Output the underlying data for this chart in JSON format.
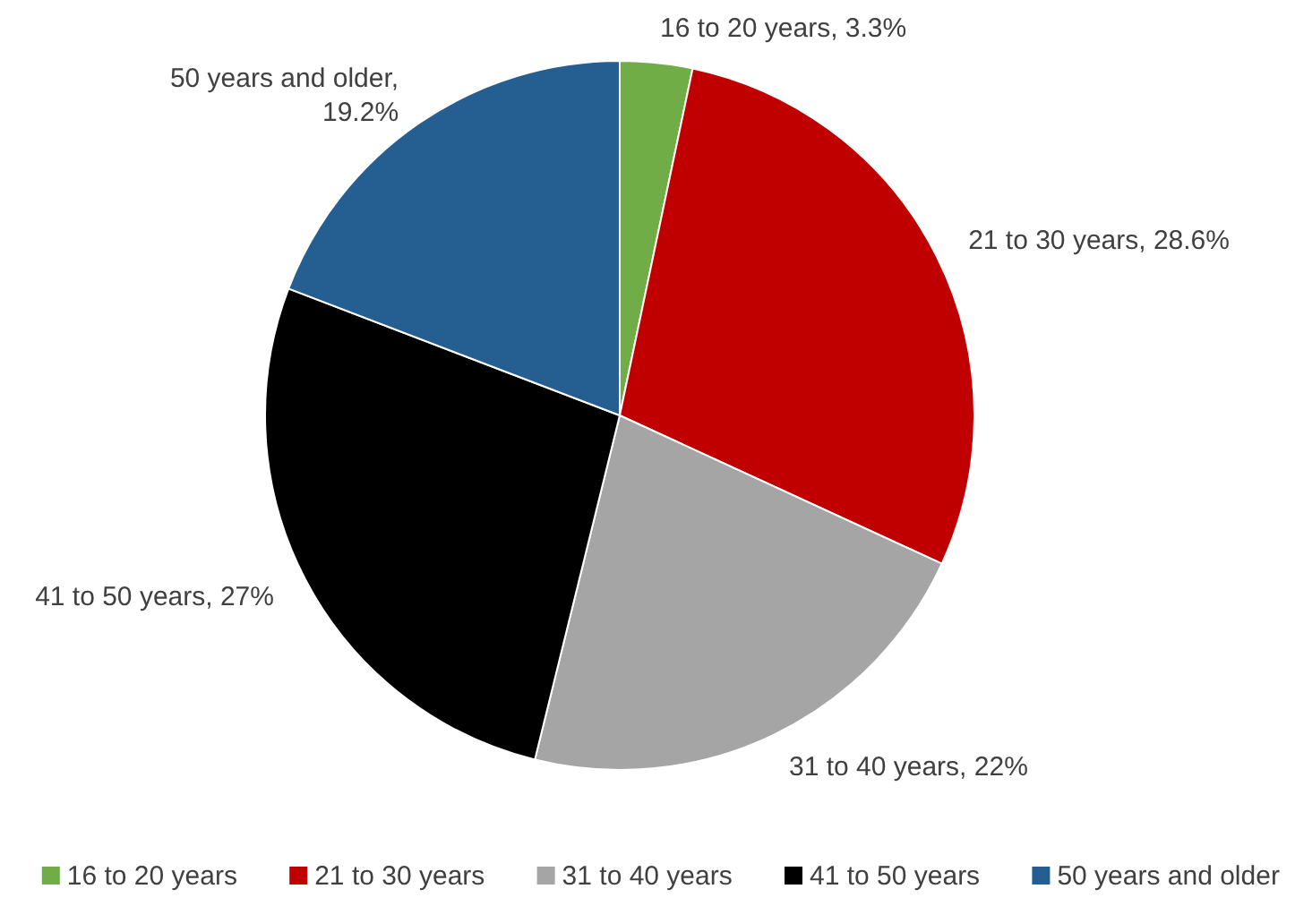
{
  "chart_data": {
    "type": "pie",
    "categories": [
      "16 to 20 years",
      "21 to 30 years",
      "31 to 40 years",
      "41 to 50 years",
      "50 years and older"
    ],
    "values": [
      3.3,
      28.6,
      22,
      27,
      19.2
    ],
    "colors": [
      "#70ad47",
      "#c00000",
      "#a5a5a5",
      "#000000",
      "#255e91"
    ],
    "value_labels": [
      "16 to 20 years, 3.3%",
      "21 to 30 years, 28.6%",
      "31 to 40 years, 22%",
      "41 to 50 years, 27%",
      "50 years and older, 19.2%"
    ],
    "legend": "bottom"
  }
}
